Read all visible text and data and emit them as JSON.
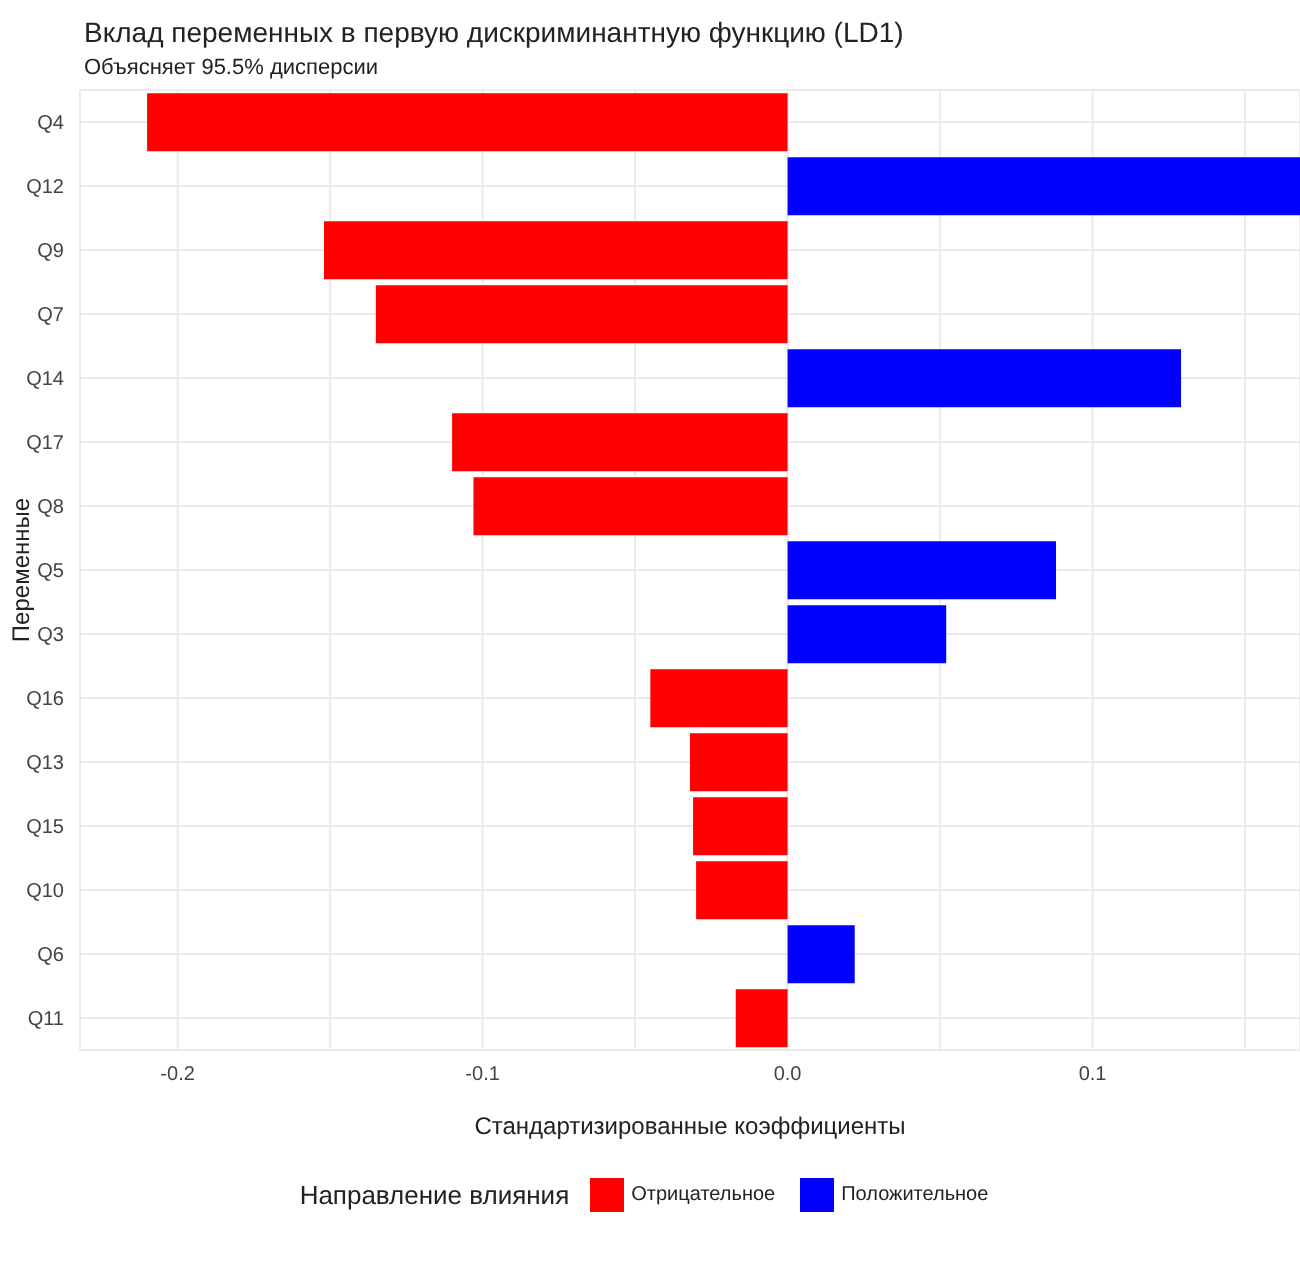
{
  "chart_data": {
    "type": "bar",
    "orientation": "horizontal",
    "stacked": true,
    "title": "Вклад переменных в первую дискриминантную функцию (LD1)",
    "subtitle": "Объясняет 95.5% дисперсии",
    "xlabel": "Стандартизированные коэффициенты",
    "ylabel": "Переменные",
    "legend_title": "Направление влияния",
    "legend": "bottom",
    "grid": true,
    "categories": [
      "Q4",
      "Q12",
      "Q9",
      "Q7",
      "Q14",
      "Q17",
      "Q8",
      "Q5",
      "Q3",
      "Q16",
      "Q13",
      "Q15",
      "Q10",
      "Q6",
      "Q11"
    ],
    "series": [
      {
        "name": "Отрицательное",
        "color": "#ff0000",
        "values": [
          -0.21,
          null,
          -0.152,
          -0.135,
          null,
          -0.11,
          -0.103,
          null,
          null,
          -0.045,
          -0.032,
          -0.031,
          -0.03,
          null,
          -0.017
        ]
      },
      {
        "name": "Положительное",
        "color": "#0000ff",
        "values": [
          null,
          0.168,
          null,
          null,
          0.129,
          null,
          null,
          0.088,
          0.052,
          null,
          null,
          null,
          null,
          0.022,
          null
        ]
      }
    ],
    "xlim": [
      -0.232,
      0.168
    ],
    "xticks": [
      -0.2,
      {
        "value": -0.15,
        "label": null
      },
      -0.1,
      {
        "value": -0.05,
        "label": null
      },
      {
        "value": 0,
        "label": "0.0"
      },
      {
        "value": 0.05,
        "label": null
      },
      0.1,
      {
        "value": 0.15,
        "label": null
      }
    ]
  }
}
